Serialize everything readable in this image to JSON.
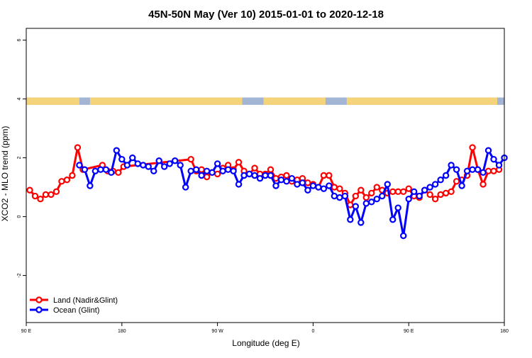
{
  "chart_data": {
    "type": "line",
    "title": "45N-50N May (Ver 10)   2015-01-01 to 2020-12-18",
    "xlabel": "Longitude (deg E)",
    "ylabel": "XCO2 - MLO trend (ppm)",
    "xlim": [
      -90,
      180
    ],
    "ylim": [
      -3.6,
      6.4
    ],
    "x_ticks": [
      {
        "value": -90,
        "label": "90 E"
      },
      {
        "value": -36,
        "label": "180"
      },
      {
        "value": 18,
        "label": "90 W"
      },
      {
        "value": 72,
        "label": "0"
      },
      {
        "value": 126,
        "label": "90 E"
      },
      {
        "value": 180,
        "label": "180"
      }
    ],
    "y_ticks": [
      -2,
      0,
      2,
      4,
      6
    ],
    "grid": false,
    "legend": {
      "position": "bottom-left"
    },
    "colors": {
      "land": "#ff0000",
      "ocean": "#0000ff"
    },
    "map_strip": {
      "y_range": [
        3.8,
        4.05
      ],
      "colors": {
        "land": "#f5d37a",
        "ocean": "#a3b5d5"
      },
      "land_segments": [
        [
          -90,
          -60
        ],
        [
          -54,
          32
        ],
        [
          44,
          79
        ],
        [
          91,
          176
        ]
      ]
    },
    "series": [
      {
        "name": "Land (Nadir&Glint)",
        "color": "#ff0000",
        "x": [
          -88,
          -85,
          -82,
          -79,
          -76,
          -73,
          -70,
          -67,
          -64,
          -61,
          -58,
          -47,
          -44,
          -41,
          -38,
          -35,
          3,
          6,
          9,
          12,
          15,
          18,
          21,
          24,
          27,
          30,
          33,
          36,
          39,
          42,
          45,
          48,
          51,
          54,
          57,
          60,
          63,
          66,
          69,
          72,
          75,
          78,
          81,
          84,
          87,
          90,
          93,
          96,
          99,
          102,
          105,
          108,
          111,
          114,
          117,
          120,
          123,
          126,
          129,
          132,
          135,
          138,
          141,
          144,
          147,
          150,
          153,
          156,
          159,
          162,
          165,
          168,
          171,
          174,
          177
        ],
        "y": [
          0.9,
          0.7,
          0.6,
          0.75,
          0.75,
          0.85,
          1.2,
          1.25,
          1.4,
          2.35,
          1.6,
          1.75,
          1.55,
          1.55,
          1.5,
          1.7,
          1.95,
          1.55,
          1.6,
          1.35,
          1.5,
          1.45,
          1.65,
          1.75,
          1.6,
          1.85,
          1.55,
          1.45,
          1.65,
          1.45,
          1.45,
          1.6,
          1.3,
          1.35,
          1.4,
          1.2,
          1.25,
          1.3,
          1.15,
          1.1,
          1.0,
          1.4,
          1.4,
          1.0,
          0.95,
          0.8,
          0.4,
          0.7,
          0.9,
          0.65,
          0.8,
          1.0,
          0.9,
          0.8,
          0.85,
          0.85,
          0.85,
          0.95,
          0.7,
          0.65,
          0.9,
          0.75,
          0.6,
          0.75,
          0.8,
          0.85,
          1.2,
          1.25,
          1.4,
          2.35,
          1.6,
          1.1,
          1.55,
          1.55,
          1.6
        ]
      },
      {
        "name": "Ocean (Glint)",
        "color": "#0000ff",
        "x": [
          -60,
          -57,
          -54,
          -51,
          -48,
          -45,
          -42,
          -39,
          -36,
          -33,
          -30,
          -27,
          -24,
          -21,
          -18,
          -15,
          -12,
          -9,
          -6,
          -3,
          0,
          3,
          6,
          9,
          12,
          15,
          18,
          21,
          24,
          27,
          30,
          33,
          36,
          39,
          42,
          45,
          48,
          51,
          54,
          57,
          60,
          63,
          66,
          69,
          72,
          75,
          78,
          81,
          84,
          87,
          90,
          93,
          96,
          99,
          102,
          105,
          108,
          111,
          114,
          117,
          120,
          123,
          126,
          129,
          132,
          135,
          138,
          141,
          144,
          147,
          150,
          153,
          156,
          159,
          162,
          165,
          168,
          171,
          174,
          177,
          180
        ],
        "y": [
          1.75,
          1.6,
          1.05,
          1.55,
          1.6,
          1.6,
          1.5,
          2.25,
          1.95,
          1.75,
          2.0,
          1.8,
          1.75,
          1.7,
          1.55,
          1.9,
          1.7,
          1.8,
          1.9,
          1.75,
          1.0,
          1.55,
          1.6,
          1.4,
          1.55,
          1.5,
          1.8,
          1.55,
          1.6,
          1.55,
          1.1,
          1.4,
          1.45,
          1.4,
          1.3,
          1.4,
          1.4,
          1.05,
          1.25,
          1.2,
          1.3,
          1.1,
          1.15,
          0.9,
          1.05,
          1.0,
          0.95,
          1.05,
          0.7,
          0.65,
          0.7,
          -0.1,
          0.35,
          -0.2,
          0.45,
          0.5,
          0.6,
          0.7,
          1.1,
          -0.1,
          0.3,
          -0.65,
          0.6,
          0.85,
          0.7,
          0.9,
          1.0,
          1.1,
          1.25,
          1.4,
          1.75,
          1.6,
          1.05,
          1.55,
          1.6,
          1.6,
          1.5,
          2.25,
          1.95,
          1.75,
          2.0
        ]
      }
    ]
  }
}
